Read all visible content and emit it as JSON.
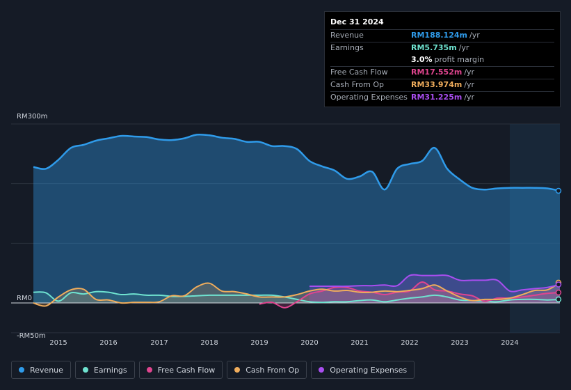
{
  "tooltip": {
    "date": "Dec 31 2024",
    "rows": [
      {
        "label": "Revenue",
        "value": "RM188.124m",
        "unit": "/yr",
        "color": "#2f9bea"
      },
      {
        "label": "Earnings",
        "value": "RM5.735m",
        "unit": "/yr",
        "color": "#6fe3d0"
      },
      {
        "label": "",
        "value": "3.0%",
        "unit": "profit margin",
        "color": "#ffffff"
      },
      {
        "label": "Free Cash Flow",
        "value": "RM17.552m",
        "unit": "/yr",
        "color": "#e0458f"
      },
      {
        "label": "Cash From Op",
        "value": "RM33.974m",
        "unit": "/yr",
        "color": "#f0ad5c"
      },
      {
        "label": "Operating Expenses",
        "value": "RM31.225m",
        "unit": "/yr",
        "color": "#a94ef0"
      }
    ]
  },
  "legend": [
    {
      "label": "Revenue",
      "color": "#2f9bea"
    },
    {
      "label": "Earnings",
      "color": "#6fe3d0"
    },
    {
      "label": "Free Cash Flow",
      "color": "#e0458f"
    },
    {
      "label": "Cash From Op",
      "color": "#f0ad5c"
    },
    {
      "label": "Operating Expenses",
      "color": "#a94ef0"
    }
  ],
  "chart_data": {
    "type": "area",
    "title": "",
    "xlabel": "",
    "ylabel": "",
    "y_tick_labels": [
      "RM300m",
      "RM0",
      "-RM50m"
    ],
    "x_tick_labels": [
      "2015",
      "2016",
      "2017",
      "2018",
      "2019",
      "2020",
      "2021",
      "2022",
      "2023",
      "2024"
    ],
    "xlim": [
      2014.5,
      2025.0
    ],
    "ylim": [
      -50,
      300
    ],
    "highlight_from": 2024.0,
    "series": [
      {
        "name": "Revenue",
        "color": "#2f9bea",
        "x": [
          2014.5,
          2014.75,
          2015.0,
          2015.25,
          2015.5,
          2015.75,
          2016.0,
          2016.25,
          2016.5,
          2016.75,
          2017.0,
          2017.25,
          2017.5,
          2017.75,
          2018.0,
          2018.25,
          2018.5,
          2018.75,
          2019.0,
          2019.25,
          2019.5,
          2019.75,
          2020.0,
          2020.25,
          2020.5,
          2020.75,
          2021.0,
          2021.25,
          2021.5,
          2021.75,
          2022.0,
          2022.25,
          2022.5,
          2022.75,
          2023.0,
          2023.25,
          2023.5,
          2023.75,
          2024.0,
          2024.25,
          2024.5,
          2024.75,
          2025.0
        ],
        "values": [
          228,
          225,
          240,
          260,
          265,
          272,
          276,
          280,
          279,
          278,
          274,
          273,
          276,
          282,
          281,
          277,
          275,
          270,
          270,
          263,
          263,
          258,
          238,
          229,
          222,
          208,
          212,
          220,
          190,
          225,
          233,
          238,
          260,
          225,
          207,
          193,
          190,
          192,
          193,
          193,
          193,
          192,
          188
        ]
      },
      {
        "name": "Earnings",
        "color": "#6fe3d0",
        "x": [
          2014.5,
          2014.75,
          2015.0,
          2015.25,
          2015.5,
          2015.75,
          2016.0,
          2016.25,
          2016.5,
          2016.75,
          2017.0,
          2017.25,
          2017.5,
          2017.75,
          2018.0,
          2018.25,
          2018.5,
          2018.75,
          2019.0,
          2019.25,
          2019.5,
          2019.75,
          2020.0,
          2020.25,
          2020.5,
          2020.75,
          2021.0,
          2021.25,
          2021.5,
          2021.75,
          2022.0,
          2022.25,
          2022.5,
          2022.75,
          2023.0,
          2023.25,
          2023.5,
          2023.75,
          2024.0,
          2024.25,
          2024.5,
          2024.75,
          2025.0
        ],
        "values": [
          18,
          17,
          3,
          17,
          15,
          19,
          18,
          14,
          15,
          13,
          13,
          11,
          11,
          12,
          13,
          13,
          13,
          13,
          13,
          13,
          10,
          6,
          2,
          1,
          2,
          2,
          4,
          5,
          2,
          5,
          8,
          10,
          13,
          10,
          5,
          4,
          3,
          2,
          5,
          6,
          6,
          5,
          6
        ]
      },
      {
        "name": "Free Cash Flow",
        "color": "#e0458f",
        "x": [
          2019.0,
          2019.25,
          2019.5,
          2019.75,
          2020.0,
          2020.25,
          2020.5,
          2020.75,
          2021.0,
          2021.25,
          2021.5,
          2021.75,
          2022.0,
          2022.25,
          2022.5,
          2022.75,
          2023.0,
          2023.25,
          2023.5,
          2023.75,
          2024.0,
          2024.25,
          2024.5,
          2024.75,
          2025.0
        ],
        "values": [
          -2,
          1,
          -8,
          2,
          15,
          20,
          26,
          26,
          20,
          18,
          14,
          18,
          20,
          35,
          22,
          20,
          15,
          12,
          3,
          8,
          8,
          10,
          13,
          16,
          17.5
        ]
      },
      {
        "name": "Cash From Op",
        "color": "#f0ad5c",
        "x": [
          2014.5,
          2014.75,
          2015.0,
          2015.25,
          2015.5,
          2015.75,
          2016.0,
          2016.25,
          2016.5,
          2016.75,
          2017.0,
          2017.25,
          2017.5,
          2017.75,
          2018.0,
          2018.25,
          2018.5,
          2018.75,
          2019.0,
          2019.25,
          2019.5,
          2019.75,
          2020.0,
          2020.25,
          2020.5,
          2020.75,
          2021.0,
          2021.25,
          2021.5,
          2021.75,
          2022.0,
          2022.25,
          2022.5,
          2022.75,
          2023.0,
          2023.25,
          2023.5,
          2023.75,
          2024.0,
          2024.25,
          2024.5,
          2024.75,
          2025.0
        ],
        "values": [
          0,
          -5,
          10,
          22,
          23,
          6,
          5,
          0,
          1,
          1,
          2,
          12,
          12,
          27,
          33,
          20,
          19,
          15,
          10,
          10,
          10,
          14,
          20,
          23,
          20,
          21,
          18,
          18,
          20,
          19,
          21,
          24,
          30,
          20,
          10,
          4,
          6,
          6,
          8,
          14,
          21,
          22,
          34
        ]
      },
      {
        "name": "Operating Expenses",
        "color": "#a94ef0",
        "x": [
          2020.0,
          2020.25,
          2020.5,
          2020.75,
          2021.0,
          2021.25,
          2021.5,
          2021.75,
          2022.0,
          2022.25,
          2022.5,
          2022.75,
          2023.0,
          2023.25,
          2023.5,
          2023.75,
          2024.0,
          2024.25,
          2024.5,
          2024.75,
          2025.0
        ],
        "values": [
          28,
          28,
          28,
          28,
          29,
          29,
          30,
          29,
          46,
          46,
          46,
          46,
          38,
          38,
          38,
          38,
          20,
          22,
          24,
          26,
          31
        ]
      }
    ]
  }
}
